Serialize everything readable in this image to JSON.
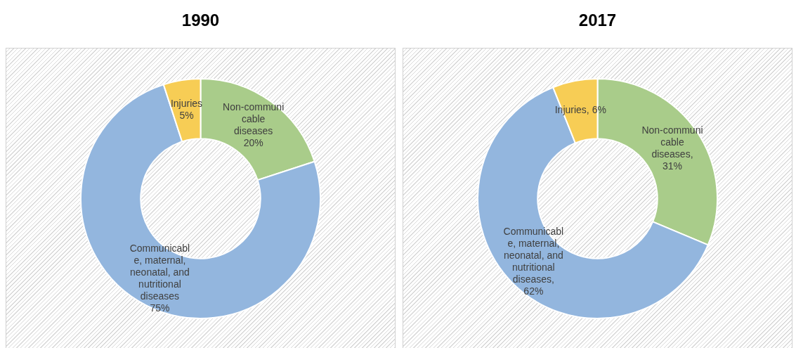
{
  "chart_data": [
    {
      "type": "donut",
      "title": "1990",
      "categories": [
        "Non-communicable diseases",
        "Communicable, maternal, neonatal, and nutritional diseases",
        "Injuries"
      ],
      "values": [
        20,
        75,
        5
      ],
      "colors": [
        "#a9cc8a",
        "#93b6de",
        "#f7cd55"
      ],
      "value_labels": [
        "20%",
        "75%",
        "5%"
      ]
    },
    {
      "type": "donut",
      "title": "2017",
      "categories": [
        "Non-communicable diseases",
        "Communicable, maternal, neonatal, and nutritional diseases",
        "Injuries"
      ],
      "values": [
        31,
        62,
        6
      ],
      "colors": [
        "#a9cc8a",
        "#93b6de",
        "#f7cd55"
      ],
      "value_labels": [
        ", 31%",
        ", 62%",
        ", 6%"
      ]
    }
  ]
}
